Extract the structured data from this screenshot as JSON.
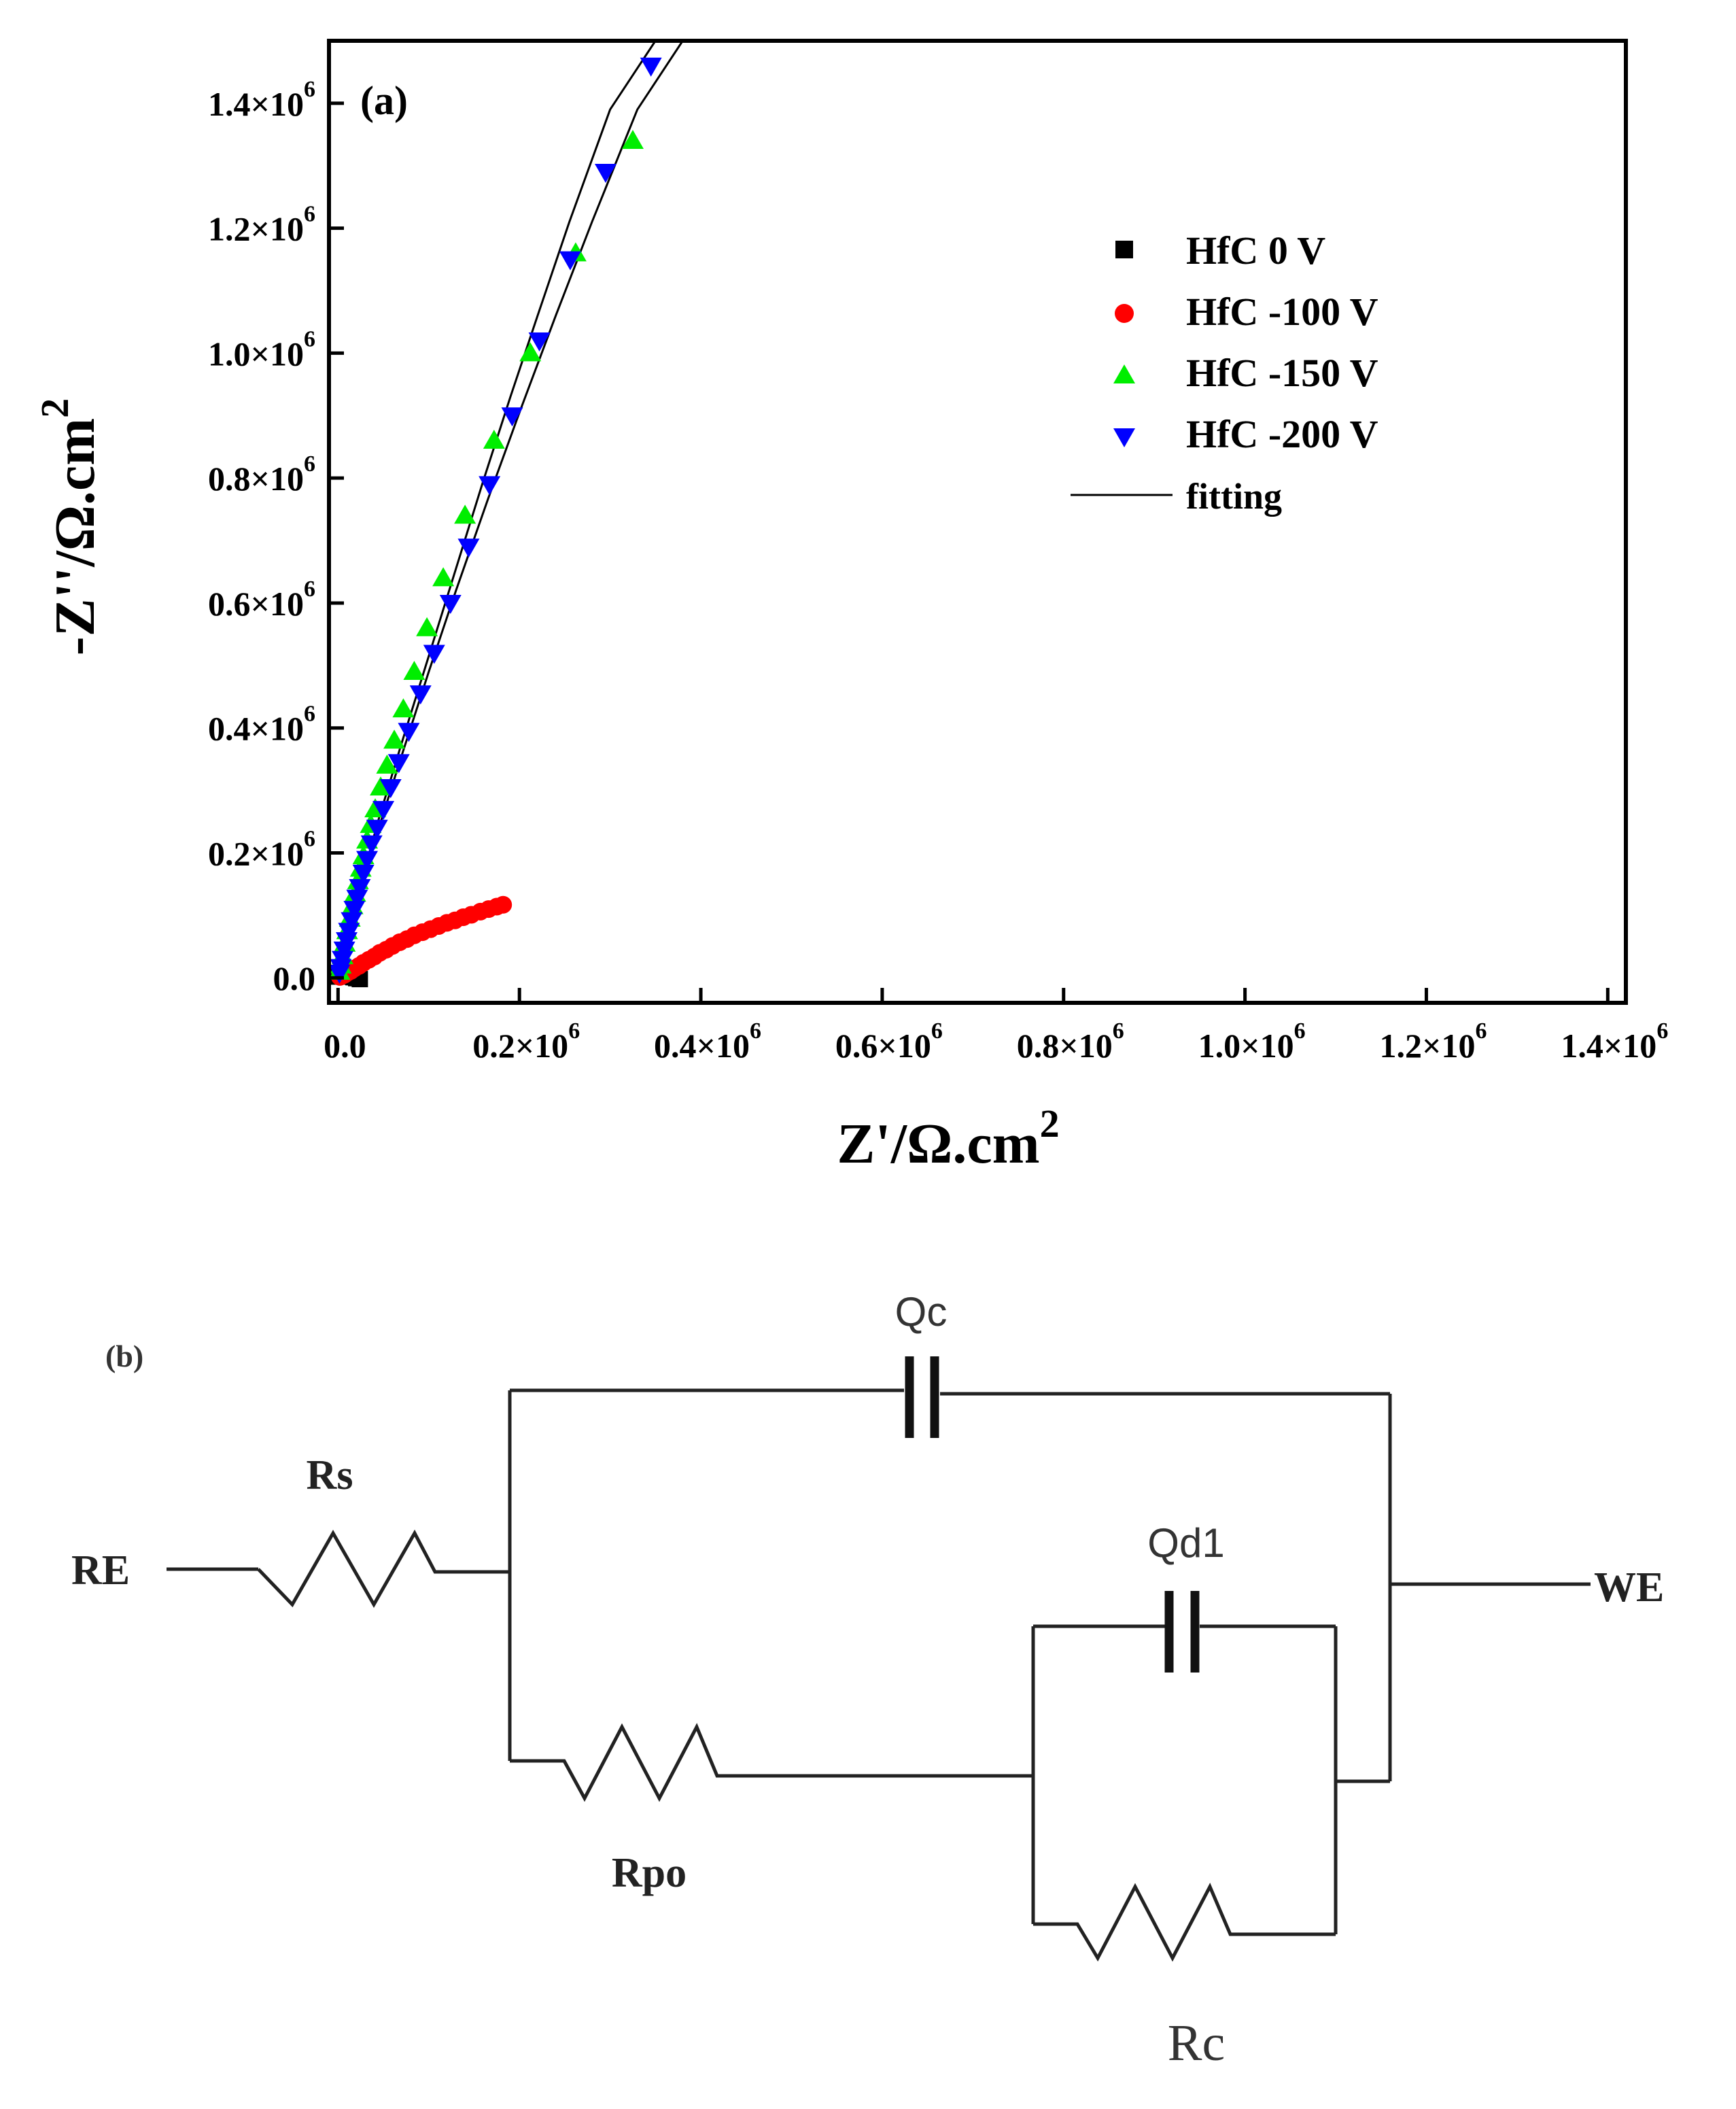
{
  "chart_data": {
    "type": "scatter",
    "panel_label": "(a)",
    "xlabel": "Z'/Ω.cm",
    "xlabel_sup": "2",
    "ylabel": "-Z''/Ω.cm",
    "ylabel_sup": "2",
    "xlim": [
      -10000,
      1420000
    ],
    "ylim": [
      -40000,
      1500000
    ],
    "x_ticks": [
      {
        "value": 0,
        "mant": "0.0",
        "exp": ""
      },
      {
        "value": 200000,
        "mant": "0.2×10",
        "exp": "6"
      },
      {
        "value": 400000,
        "mant": "0.4×10",
        "exp": "6"
      },
      {
        "value": 600000,
        "mant": "0.6×10",
        "exp": "6"
      },
      {
        "value": 800000,
        "mant": "0.8×10",
        "exp": "6"
      },
      {
        "value": 1000000,
        "mant": "1.0×10",
        "exp": "6"
      },
      {
        "value": 1200000,
        "mant": "1.2×10",
        "exp": "6"
      },
      {
        "value": 1400000,
        "mant": "1.4×10",
        "exp": "6"
      }
    ],
    "y_ticks": [
      {
        "value": 0,
        "mant": "0.0",
        "exp": ""
      },
      {
        "value": 200000,
        "mant": "0.2×10",
        "exp": "6"
      },
      {
        "value": 400000,
        "mant": "0.4×10",
        "exp": "6"
      },
      {
        "value": 600000,
        "mant": "0.6×10",
        "exp": "6"
      },
      {
        "value": 800000,
        "mant": "0.8×10",
        "exp": "6"
      },
      {
        "value": 1000000,
        "mant": "1.0×10",
        "exp": "6"
      },
      {
        "value": 1200000,
        "mant": "1.2×10",
        "exp": "6"
      },
      {
        "value": 1400000,
        "mant": "1.4×10",
        "exp": "6"
      }
    ],
    "legend_position": "top-right",
    "series": [
      {
        "name": "HfC 0 V",
        "marker": "square",
        "color": "#000000",
        "x": [
          1000,
          2500,
          4000,
          6000,
          8000,
          10000,
          12000,
          14000,
          17000,
          20000,
          24000
        ],
        "y": [
          2000,
          3500,
          4500,
          5000,
          5000,
          4500,
          3500,
          2500,
          1000,
          -500,
          -2000
        ]
      },
      {
        "name": "HfC -100 V",
        "marker": "circle",
        "color": "#ff0000",
        "x": [
          2000,
          4000,
          7000,
          10000,
          14000,
          18000,
          23000,
          28000,
          34000,
          40000,
          46000,
          53000,
          60000,
          68000,
          76000,
          84000,
          93000,
          102000,
          111000,
          120000,
          129000,
          138000,
          147000,
          157000,
          166000,
          175000,
          182000
        ],
        "y": [
          1500,
          3000,
          5000,
          8000,
          11000,
          15000,
          19000,
          24000,
          29000,
          34000,
          40000,
          45000,
          51000,
          57000,
          62000,
          68000,
          73000,
          78000,
          83000,
          88000,
          92000,
          97000,
          101000,
          106000,
          110000,
          114000,
          117000
        ]
      },
      {
        "name": "HfC -150 V",
        "marker": "triangle-up",
        "color": "#00ee00",
        "x": [
          1500,
          3000,
          5000,
          7500,
          10000,
          13000,
          16000,
          19000,
          22000,
          25000,
          28000,
          32000,
          36000,
          41000,
          47000,
          54000,
          62000,
          72000,
          84000,
          98000,
          116000,
          140000,
          172000,
          212000,
          262000,
          325000
        ],
        "y": [
          10000,
          20000,
          35000,
          55000,
          75000,
          95000,
          115000,
          135000,
          155000,
          175000,
          195000,
          220000,
          245000,
          270000,
          305000,
          340000,
          380000,
          430000,
          490000,
          560000,
          640000,
          740000,
          860000,
          1000000,
          1160000,
          1340000
        ]
      },
      {
        "name": "HfC -200 V",
        "marker": "triangle-down",
        "color": "#0000ff",
        "x": [
          1500,
          3000,
          5000,
          7000,
          9500,
          12000,
          15000,
          18000,
          21000,
          24000,
          28000,
          32000,
          37000,
          43000,
          50000,
          58000,
          67000,
          78000,
          91000,
          106000,
          124000,
          144000,
          167000,
          192000,
          222000,
          256000,
          295000,
          345000
        ],
        "y": [
          8000,
          17000,
          30000,
          45000,
          60000,
          75000,
          92000,
          110000,
          128000,
          145000,
          168000,
          190000,
          215000,
          240000,
          270000,
          305000,
          345000,
          395000,
          455000,
          520000,
          600000,
          690000,
          790000,
          900000,
          1020000,
          1150000,
          1290000,
          1460000
        ]
      },
      {
        "name": "fitting",
        "marker": "line",
        "color": "#000000"
      }
    ],
    "fit_lines": [
      {
        "x": [
          0,
          10000,
          25000,
          45000,
          70000,
          100000,
          130000,
          160000,
          190000,
          220000,
          255000,
          300000,
          350000,
          400000
        ],
        "y": [
          0,
          65000,
          150000,
          255000,
          375000,
          515000,
          655000,
          795000,
          930000,
          1060000,
          1210000,
          1390000,
          1500000,
          1500000
        ]
      },
      {
        "x": [
          0,
          10000,
          25000,
          45000,
          70000,
          100000,
          130000,
          165000,
          200000,
          240000,
          280000,
          330000,
          380000
        ],
        "y": [
          0,
          60000,
          140000,
          240000,
          355000,
          490000,
          620000,
          765000,
          905000,
          1060000,
          1210000,
          1390000,
          1500000
        ]
      },
      {
        "x": [
          0,
          10000,
          25000,
          45000,
          70000,
          100000,
          130000,
          160000,
          185000
        ],
        "y": [
          0,
          9000,
          22000,
          38000,
          56000,
          76000,
          95000,
          112000,
          124000
        ]
      }
    ]
  },
  "circuit": {
    "panel_label": "(b)",
    "labels": {
      "re": "RE",
      "we": "WE",
      "rs": "Rs",
      "qc": "Qc",
      "qd1": "Qd1",
      "rpo": "Rpo",
      "rc": "Rc"
    }
  }
}
